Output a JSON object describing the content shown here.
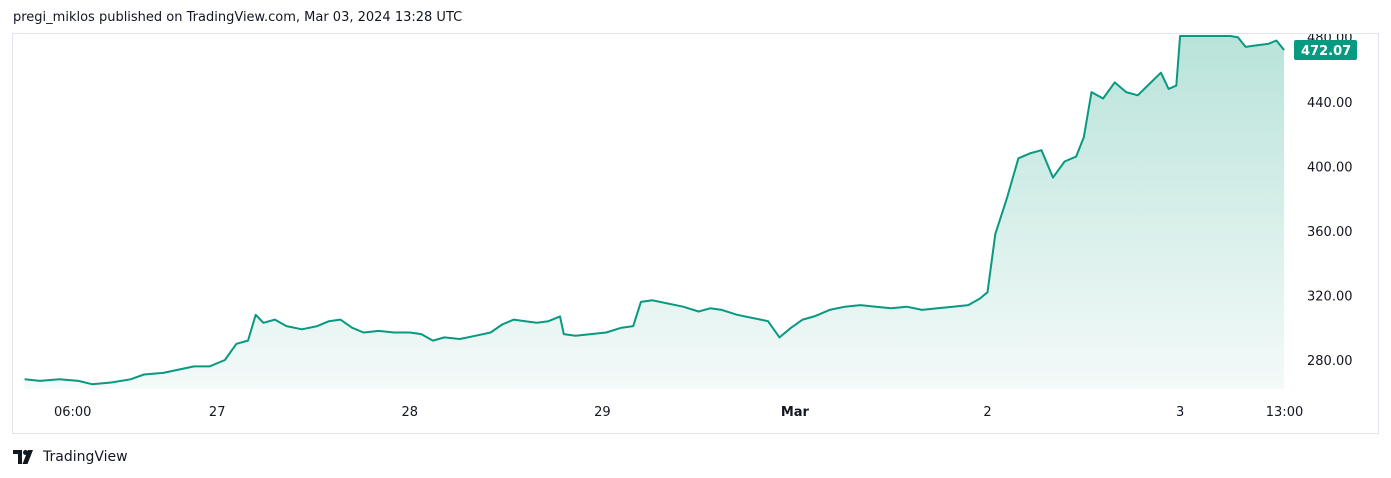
{
  "header": {
    "text": "pregi_miklos published on TradingView.com, Mar 03, 2024 13:28 UTC"
  },
  "footer": {
    "brand": "TradingView"
  },
  "colors": {
    "line": "#089981",
    "area_top": "#b9e3da",
    "area_bottom": "#f4faf9",
    "price_badge": "#089981",
    "grid_border": "#e0e3eb"
  },
  "chart_data": {
    "type": "area",
    "symbol_price": "472.07",
    "ylim": [
      262,
      482
    ],
    "y_ticks": [
      "280.00",
      "320.00",
      "360.00",
      "400.00",
      "440.00",
      "480.00"
    ],
    "x_ticks": [
      {
        "label": "06:00",
        "t": 0.25
      },
      {
        "label": "27",
        "t": 1.0
      },
      {
        "label": "28",
        "t": 2.0
      },
      {
        "label": "29",
        "t": 3.0
      },
      {
        "label": "Mar",
        "t": 4.0
      },
      {
        "label": "2",
        "t": 5.0
      },
      {
        "label": "3",
        "t": 6.0
      },
      {
        "label": "13:00",
        "t": 6.5417
      }
    ],
    "x_range_days": [
      -0.06,
      6.56
    ],
    "points": [
      [
        0.0,
        268
      ],
      [
        0.08,
        267
      ],
      [
        0.18,
        268
      ],
      [
        0.28,
        267
      ],
      [
        0.35,
        265
      ],
      [
        0.45,
        266
      ],
      [
        0.55,
        268
      ],
      [
        0.62,
        271
      ],
      [
        0.72,
        272
      ],
      [
        0.8,
        274
      ],
      [
        0.88,
        276
      ],
      [
        0.96,
        276
      ],
      [
        1.04,
        280
      ],
      [
        1.1,
        290
      ],
      [
        1.16,
        292
      ],
      [
        1.2,
        308
      ],
      [
        1.24,
        303
      ],
      [
        1.3,
        305
      ],
      [
        1.36,
        301
      ],
      [
        1.44,
        299
      ],
      [
        1.52,
        301
      ],
      [
        1.58,
        304
      ],
      [
        1.64,
        305
      ],
      [
        1.7,
        300
      ],
      [
        1.76,
        297
      ],
      [
        1.84,
        298
      ],
      [
        1.92,
        297
      ],
      [
        2.0,
        297
      ],
      [
        2.06,
        296
      ],
      [
        2.12,
        292
      ],
      [
        2.18,
        294
      ],
      [
        2.26,
        293
      ],
      [
        2.34,
        295
      ],
      [
        2.42,
        297
      ],
      [
        2.48,
        302
      ],
      [
        2.54,
        305
      ],
      [
        2.6,
        304
      ],
      [
        2.66,
        303
      ],
      [
        2.72,
        304
      ],
      [
        2.78,
        307
      ],
      [
        2.8,
        296
      ],
      [
        2.86,
        295
      ],
      [
        2.94,
        296
      ],
      [
        3.02,
        297
      ],
      [
        3.1,
        300
      ],
      [
        3.16,
        301
      ],
      [
        3.2,
        316
      ],
      [
        3.26,
        317
      ],
      [
        3.34,
        315
      ],
      [
        3.42,
        313
      ],
      [
        3.5,
        310
      ],
      [
        3.56,
        312
      ],
      [
        3.62,
        311
      ],
      [
        3.7,
        308
      ],
      [
        3.78,
        306
      ],
      [
        3.86,
        304
      ],
      [
        3.92,
        294
      ],
      [
        3.98,
        300
      ],
      [
        4.04,
        305
      ],
      [
        4.1,
        307
      ],
      [
        4.18,
        311
      ],
      [
        4.26,
        313
      ],
      [
        4.34,
        314
      ],
      [
        4.42,
        313
      ],
      [
        4.5,
        312
      ],
      [
        4.58,
        313
      ],
      [
        4.66,
        311
      ],
      [
        4.74,
        312
      ],
      [
        4.82,
        313
      ],
      [
        4.9,
        314
      ],
      [
        4.96,
        318
      ],
      [
        5.0,
        322
      ],
      [
        5.04,
        358
      ],
      [
        5.1,
        380
      ],
      [
        5.16,
        405
      ],
      [
        5.22,
        408
      ],
      [
        5.28,
        410
      ],
      [
        5.34,
        393
      ],
      [
        5.4,
        403
      ],
      [
        5.46,
        406
      ],
      [
        5.5,
        418
      ],
      [
        5.54,
        446
      ],
      [
        5.6,
        442
      ],
      [
        5.66,
        452
      ],
      [
        5.72,
        446
      ],
      [
        5.78,
        444
      ],
      [
        5.84,
        451
      ],
      [
        5.9,
        458
      ],
      [
        5.94,
        448
      ],
      [
        5.98,
        450
      ],
      [
        6.0,
        499
      ],
      [
        6.04,
        502
      ],
      [
        6.08,
        500
      ],
      [
        6.12,
        498
      ],
      [
        6.16,
        512
      ],
      [
        6.22,
        494
      ],
      [
        6.26,
        488
      ],
      [
        6.3,
        480
      ],
      [
        6.34,
        474
      ],
      [
        6.4,
        475
      ],
      [
        6.46,
        476
      ],
      [
        6.5,
        478
      ],
      [
        6.54,
        472.07
      ]
    ]
  }
}
